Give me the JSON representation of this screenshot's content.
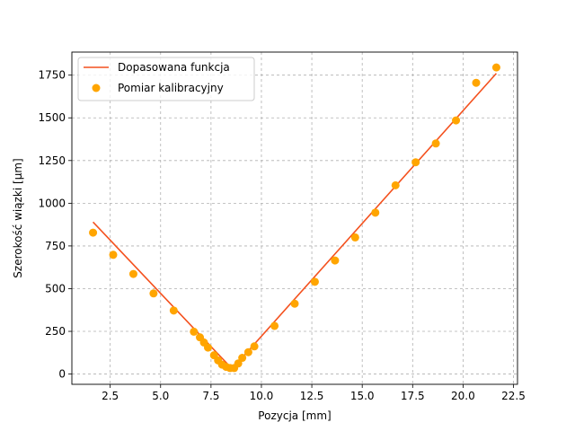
{
  "chart_data": {
    "type": "scatter",
    "xlabel": "Pozycja [mm]",
    "ylabel": "Szerokość wiązki [μm]",
    "xlim": [
      0.6,
      22.7
    ],
    "ylim": [
      -60,
      1885
    ],
    "xticks": [
      2.5,
      5.0,
      7.5,
      10.0,
      12.5,
      15.0,
      17.5,
      20.0,
      22.5
    ],
    "xtick_labels": [
      "2.5",
      "5.0",
      "7.5",
      "10.0",
      "12.5",
      "15.0",
      "17.5",
      "20.0",
      "22.5"
    ],
    "yticks": [
      0,
      250,
      500,
      750,
      1000,
      1250,
      1500,
      1750
    ],
    "ytick_labels": [
      "0",
      "250",
      "500",
      "750",
      "1000",
      "1250",
      "1500",
      "1750"
    ],
    "grid": true,
    "legend_position": "top-left",
    "series": [
      {
        "name": "Dopasowana funkcja",
        "kind": "line",
        "color": "#f4511e",
        "x": [
          1.65,
          8.55,
          21.65
        ],
        "y": [
          890,
          30,
          1760
        ]
      },
      {
        "name": "Pomiar kalibracyjny",
        "kind": "scatter",
        "color": "#ffa500",
        "x": [
          1.65,
          2.65,
          3.65,
          4.65,
          5.65,
          6.65,
          6.95,
          7.15,
          7.35,
          7.65,
          7.85,
          8.05,
          8.25,
          8.45,
          8.65,
          8.85,
          9.05,
          9.35,
          9.65,
          10.65,
          11.65,
          12.65,
          13.65,
          14.65,
          15.65,
          16.65,
          17.65,
          18.65,
          19.65,
          20.65,
          21.65
        ],
        "y": [
          828,
          698,
          586,
          472,
          372,
          248,
          215,
          185,
          155,
          110,
          80,
          55,
          42,
          35,
          35,
          62,
          95,
          128,
          162,
          282,
          412,
          540,
          665,
          800,
          945,
          1105,
          1240,
          1350,
          1485,
          1705,
          1795
        ]
      }
    ]
  }
}
